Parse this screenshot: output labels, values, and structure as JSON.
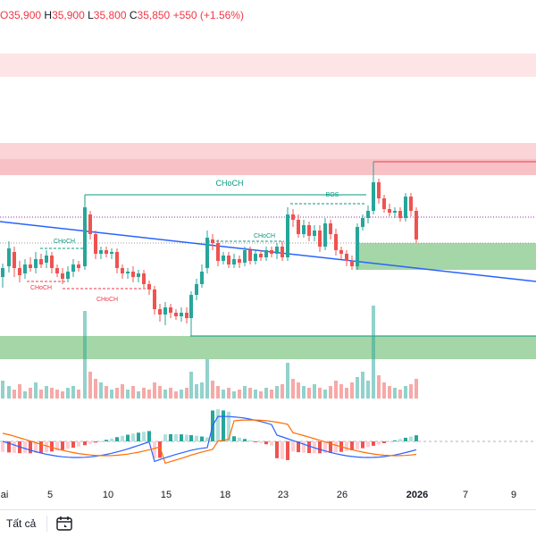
{
  "ohlc": {
    "open_value": "O35,900",
    "high_label": "H",
    "high_value": "35,900",
    "low_label": "L",
    "low_value": "35,800",
    "close_label": "C",
    "close_value": "35,850",
    "change": "+550 (+1.56%)"
  },
  "annotations": {
    "choch_main": "CHoCH",
    "bos": "BOS",
    "choch_mid": "CHoCH",
    "choch_left": "CHoCH",
    "choch_red1": "CHoCH",
    "choch_red2": "CHoCH"
  },
  "x_axis": {
    "labels": [
      "ai",
      "5",
      "10",
      "15",
      "18",
      "23",
      "26",
      "2026",
      "7",
      "9"
    ]
  },
  "bottom_bar": {
    "all_label": "Tất cả",
    "calendar_icon": "calendar-icon"
  },
  "colors": {
    "up": "#26a69a",
    "down": "#ef5350",
    "supply_zone": "#f9c8cc",
    "demand_zone": "#a5d6a7",
    "trendline": "#2962ff",
    "macd_line": "#2962ff",
    "signal_line": "#ff6d00"
  },
  "chart_data": {
    "type": "candlestick",
    "series": [
      {
        "name": "price",
        "candles": "see drawn marks"
      }
    ]
  }
}
